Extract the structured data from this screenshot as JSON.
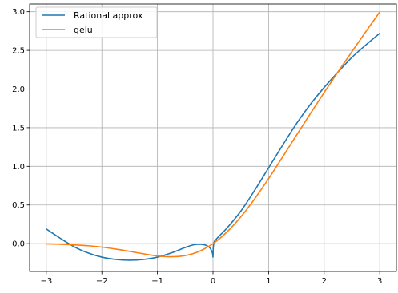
{
  "chart_data": {
    "type": "line",
    "title": "",
    "xlabel": "",
    "ylabel": "",
    "xlim": [
      -3.3,
      3.3
    ],
    "ylim": [
      -0.36,
      3.1
    ],
    "x_ticks": [
      -3,
      -2,
      -1,
      0,
      1,
      2,
      3
    ],
    "x_tick_labels": [
      "−3",
      "−2",
      "−1",
      "0",
      "1",
      "2",
      "3"
    ],
    "y_ticks": [
      0.0,
      0.5,
      1.0,
      1.5,
      2.0,
      2.5,
      3.0
    ],
    "y_tick_labels": [
      "0.0",
      "0.5",
      "1.0",
      "1.5",
      "2.0",
      "2.5",
      "3.0"
    ],
    "grid": true,
    "legend_position": "top-left",
    "series": [
      {
        "name": "Rational approx",
        "color": "#1f77b4",
        "x": [
          -3.0,
          -2.75,
          -2.5,
          -2.25,
          -2.0,
          -1.75,
          -1.5,
          -1.25,
          -1.0,
          -0.75,
          -0.5,
          -0.35,
          -0.2,
          -0.1,
          -0.05,
          -0.02,
          -0.005,
          0.0,
          0.005,
          0.02,
          0.05,
          0.1,
          0.25,
          0.5,
          0.75,
          1.0,
          1.25,
          1.5,
          1.75,
          2.0,
          2.25,
          2.5,
          2.75,
          3.0
        ],
        "y": [
          0.19,
          0.07,
          -0.04,
          -0.12,
          -0.175,
          -0.205,
          -0.215,
          -0.205,
          -0.175,
          -0.12,
          -0.05,
          -0.015,
          -0.01,
          -0.03,
          -0.06,
          -0.1,
          -0.14,
          -0.17,
          -0.05,
          0.02,
          0.05,
          0.09,
          0.2,
          0.42,
          0.69,
          0.98,
          1.27,
          1.55,
          1.8,
          2.02,
          2.22,
          2.41,
          2.57,
          2.72
        ]
      },
      {
        "name": "gelu",
        "color": "#ff7f0e",
        "x": [
          -3.0,
          -2.75,
          -2.5,
          -2.25,
          -2.0,
          -1.75,
          -1.5,
          -1.25,
          -1.0,
          -0.75,
          -0.5,
          -0.25,
          0.0,
          0.25,
          0.5,
          0.75,
          1.0,
          1.25,
          1.5,
          1.75,
          2.0,
          2.25,
          2.5,
          2.75,
          3.0
        ],
        "y": [
          -0.004,
          -0.008,
          -0.016,
          -0.027,
          -0.045,
          -0.07,
          -0.1,
          -0.132,
          -0.159,
          -0.17,
          -0.154,
          -0.1,
          0.0,
          0.15,
          0.346,
          0.58,
          0.841,
          1.118,
          1.4,
          1.68,
          1.955,
          2.223,
          2.484,
          2.742,
          2.996
        ]
      }
    ]
  }
}
